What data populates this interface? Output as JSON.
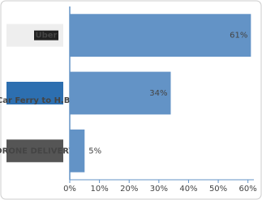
{
  "chart_data": {
    "type": "bar",
    "orientation": "horizontal",
    "categories": [
      "Uber",
      "Car Ferry to H.B.",
      "DRONE DELIVERY"
    ],
    "values": [
      61,
      34,
      5
    ],
    "value_labels": [
      "61%",
      "34%",
      "5%"
    ],
    "color": "#6393c6",
    "xlim": [
      0,
      62
    ],
    "xticks": [
      {
        "value": 0,
        "label": "0%"
      },
      {
        "value": 10,
        "label": "10%"
      },
      {
        "value": 20,
        "label": "20%"
      },
      {
        "value": 30,
        "label": "30%"
      },
      {
        "value": 40,
        "label": "40%"
      },
      {
        "value": 50,
        "label": "50%"
      },
      {
        "value": 60,
        "label": "60%"
      }
    ]
  }
}
